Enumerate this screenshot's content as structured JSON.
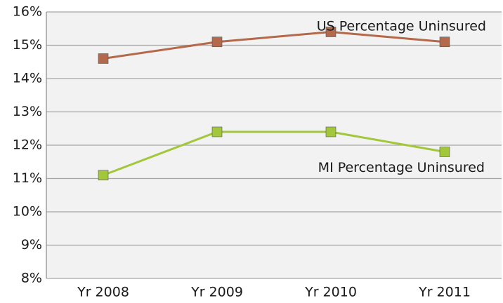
{
  "chart_data": {
    "type": "line",
    "categories": [
      "Yr 2008",
      "Yr 2009",
      "Yr 2010",
      "Yr 2011"
    ],
    "series": [
      {
        "name": "US Percentage Uninsured",
        "color": "#b5694b",
        "values": [
          14.6,
          15.1,
          15.4,
          15.1
        ]
      },
      {
        "name": "MI Percentage Uninsured",
        "color": "#a2c73b",
        "values": [
          11.1,
          12.4,
          12.4,
          11.8
        ]
      }
    ],
    "ylim": [
      8,
      16
    ],
    "yticks": [
      {
        "value": 8,
        "label": "8%"
      },
      {
        "value": 9,
        "label": "9%"
      },
      {
        "value": 10,
        "label": "10%"
      },
      {
        "value": 11,
        "label": "11%"
      },
      {
        "value": 12,
        "label": "12%"
      },
      {
        "value": 13,
        "label": "13%"
      },
      {
        "value": 14,
        "label": "14%"
      },
      {
        "value": 15,
        "label": "15%"
      },
      {
        "value": 16,
        "label": "16%"
      }
    ],
    "grid": true
  }
}
